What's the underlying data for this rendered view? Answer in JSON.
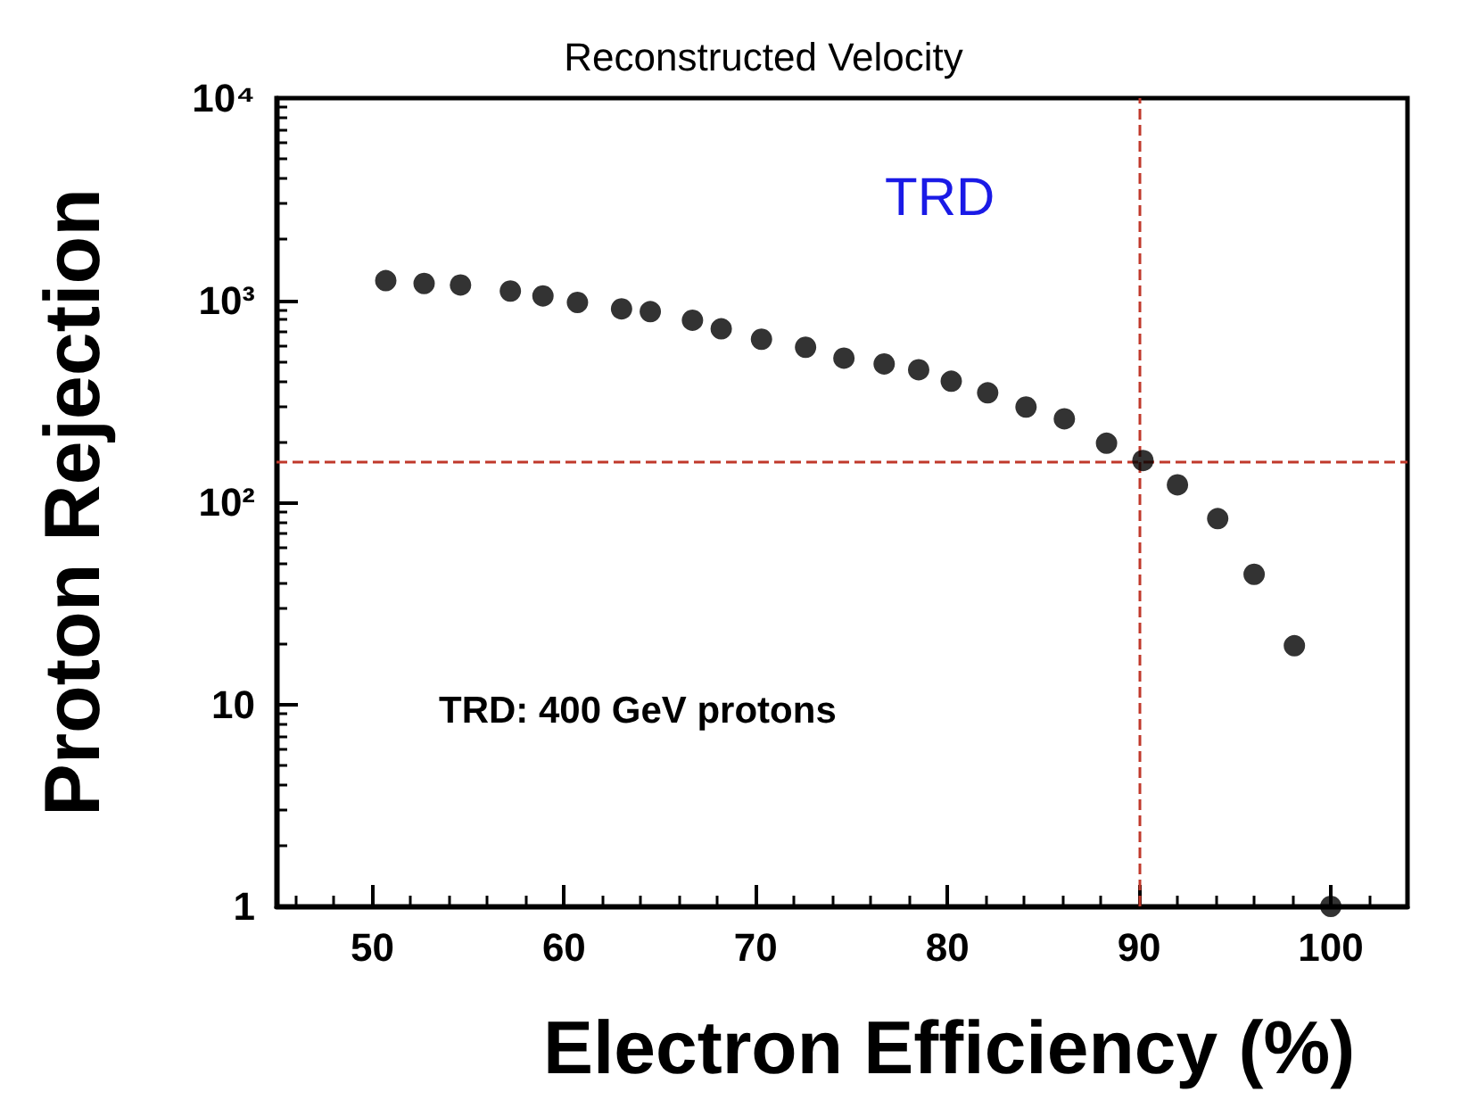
{
  "chart_data": {
    "type": "scatter",
    "title": "Reconstructed Velocity",
    "xlabel": "Electron Efficiency (%)",
    "ylabel": "Proton Rejection",
    "log": "y",
    "marker": "circle",
    "xlim": [
      45,
      104
    ],
    "xticks": [
      50,
      60,
      70,
      80,
      90,
      100
    ],
    "ylim": [
      1,
      10000
    ],
    "yticks": [
      1,
      10,
      {
        "value": 100,
        "label": "10²"
      },
      {
        "value": 1000,
        "label": "10³"
      },
      {
        "value": 10000,
        "label": "10⁴"
      }
    ],
    "series": [
      {
        "color": "#000000",
        "x": [
          50.7,
          52.7,
          54.6,
          57.2,
          58.9,
          60.7,
          63.0,
          64.5,
          66.7,
          68.2,
          70.3,
          72.6,
          74.6,
          76.7,
          78.5,
          80.2,
          82.1,
          84.1,
          86.1,
          88.3,
          90.2,
          92.0,
          94.1,
          96.0,
          98.1,
          100.0
        ],
        "values": [
          1250,
          1210,
          1190,
          1110,
          1050,
          975,
          906,
          878,
          796,
          722,
          641,
          585,
          517,
          484,
          453,
          397,
          348,
          296,
          259,
          196,
          161,
          122,
          83,
          44,
          19.5,
          1
        ]
      }
    ],
    "ref_lines": [
      {
        "axis": "x",
        "value": 90,
        "color": "#c0392b",
        "line_style": "dashed"
      },
      {
        "axis": "y",
        "value": 160,
        "color": "#c0392b",
        "line_style": "dashed"
      }
    ],
    "annotations": [
      "TRD",
      "TRD: 400 GeV protons"
    ]
  }
}
